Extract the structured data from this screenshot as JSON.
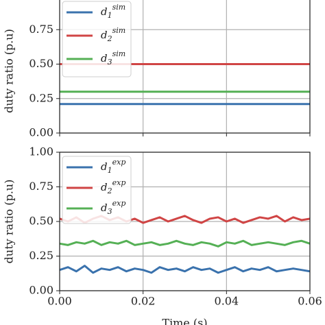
{
  "chart_data": [
    {
      "type": "line",
      "y_label": "duty ratio (p.u)",
      "x": [
        0,
        0.06
      ],
      "xlim": [
        0,
        0.06
      ],
      "xticks": [
        0,
        0.02,
        0.04,
        0.06
      ],
      "ylim": [
        0,
        1
      ],
      "yticks": [
        0,
        0.25,
        0.5,
        0.75
      ],
      "ytick_labels": [
        "0.00",
        "0.25",
        "0.50",
        "0.75"
      ],
      "grid": true,
      "legend": "upper left",
      "series": [
        {
          "name": "d1sim",
          "color": "#3a72ad",
          "values": [
            0.21,
            0.21
          ]
        },
        {
          "name": "d2sim",
          "color": "#d04545",
          "values": [
            0.5,
            0.5
          ]
        },
        {
          "name": "d3sim",
          "color": "#55b055",
          "values": [
            0.3,
            0.3
          ]
        }
      ]
    },
    {
      "type": "line",
      "y_label": "duty ratio (p.u)",
      "x_label": "Time (s)",
      "x": [
        0,
        0.002,
        0.004,
        0.006,
        0.008,
        0.01,
        0.012,
        0.014,
        0.016,
        0.018,
        0.02,
        0.022,
        0.024,
        0.026,
        0.028,
        0.03,
        0.032,
        0.034,
        0.036,
        0.038,
        0.04,
        0.042,
        0.044,
        0.046,
        0.048,
        0.05,
        0.052,
        0.054,
        0.056,
        0.058,
        0.06
      ],
      "xlim": [
        0,
        0.06
      ],
      "xticks": [
        0,
        0.02,
        0.04,
        0.06
      ],
      "xtick_labels": [
        "0.00",
        "0.02",
        "0.04",
        "0.06"
      ],
      "ylim": [
        0,
        1
      ],
      "yticks": [
        0,
        0.25,
        0.5,
        0.75,
        1
      ],
      "ytick_labels": [
        "0.00",
        "0.25",
        "0.50",
        "0.75",
        "1.00"
      ],
      "grid": true,
      "legend": "upper left",
      "series": [
        {
          "name": "d1exp",
          "color": "#3a72ad",
          "values": [
            0.15,
            0.17,
            0.14,
            0.18,
            0.13,
            0.16,
            0.15,
            0.17,
            0.14,
            0.16,
            0.15,
            0.13,
            0.17,
            0.15,
            0.16,
            0.14,
            0.17,
            0.15,
            0.16,
            0.13,
            0.15,
            0.17,
            0.14,
            0.16,
            0.15,
            0.17,
            0.14,
            0.15,
            0.16,
            0.15,
            0.14
          ]
        },
        {
          "name": "d2exp",
          "color": "#d04545",
          "values": [
            0.52,
            0.5,
            0.53,
            0.49,
            0.52,
            0.54,
            0.51,
            0.53,
            0.5,
            0.52,
            0.49,
            0.51,
            0.53,
            0.5,
            0.52,
            0.54,
            0.51,
            0.49,
            0.52,
            0.53,
            0.5,
            0.52,
            0.49,
            0.51,
            0.53,
            0.52,
            0.54,
            0.5,
            0.53,
            0.51,
            0.52
          ]
        },
        {
          "name": "d3exp",
          "color": "#55b055",
          "values": [
            0.34,
            0.33,
            0.35,
            0.34,
            0.36,
            0.33,
            0.35,
            0.34,
            0.36,
            0.33,
            0.34,
            0.35,
            0.33,
            0.34,
            0.36,
            0.34,
            0.33,
            0.35,
            0.34,
            0.32,
            0.35,
            0.34,
            0.36,
            0.33,
            0.34,
            0.35,
            0.34,
            0.33,
            0.35,
            0.36,
            0.34
          ]
        }
      ]
    }
  ]
}
